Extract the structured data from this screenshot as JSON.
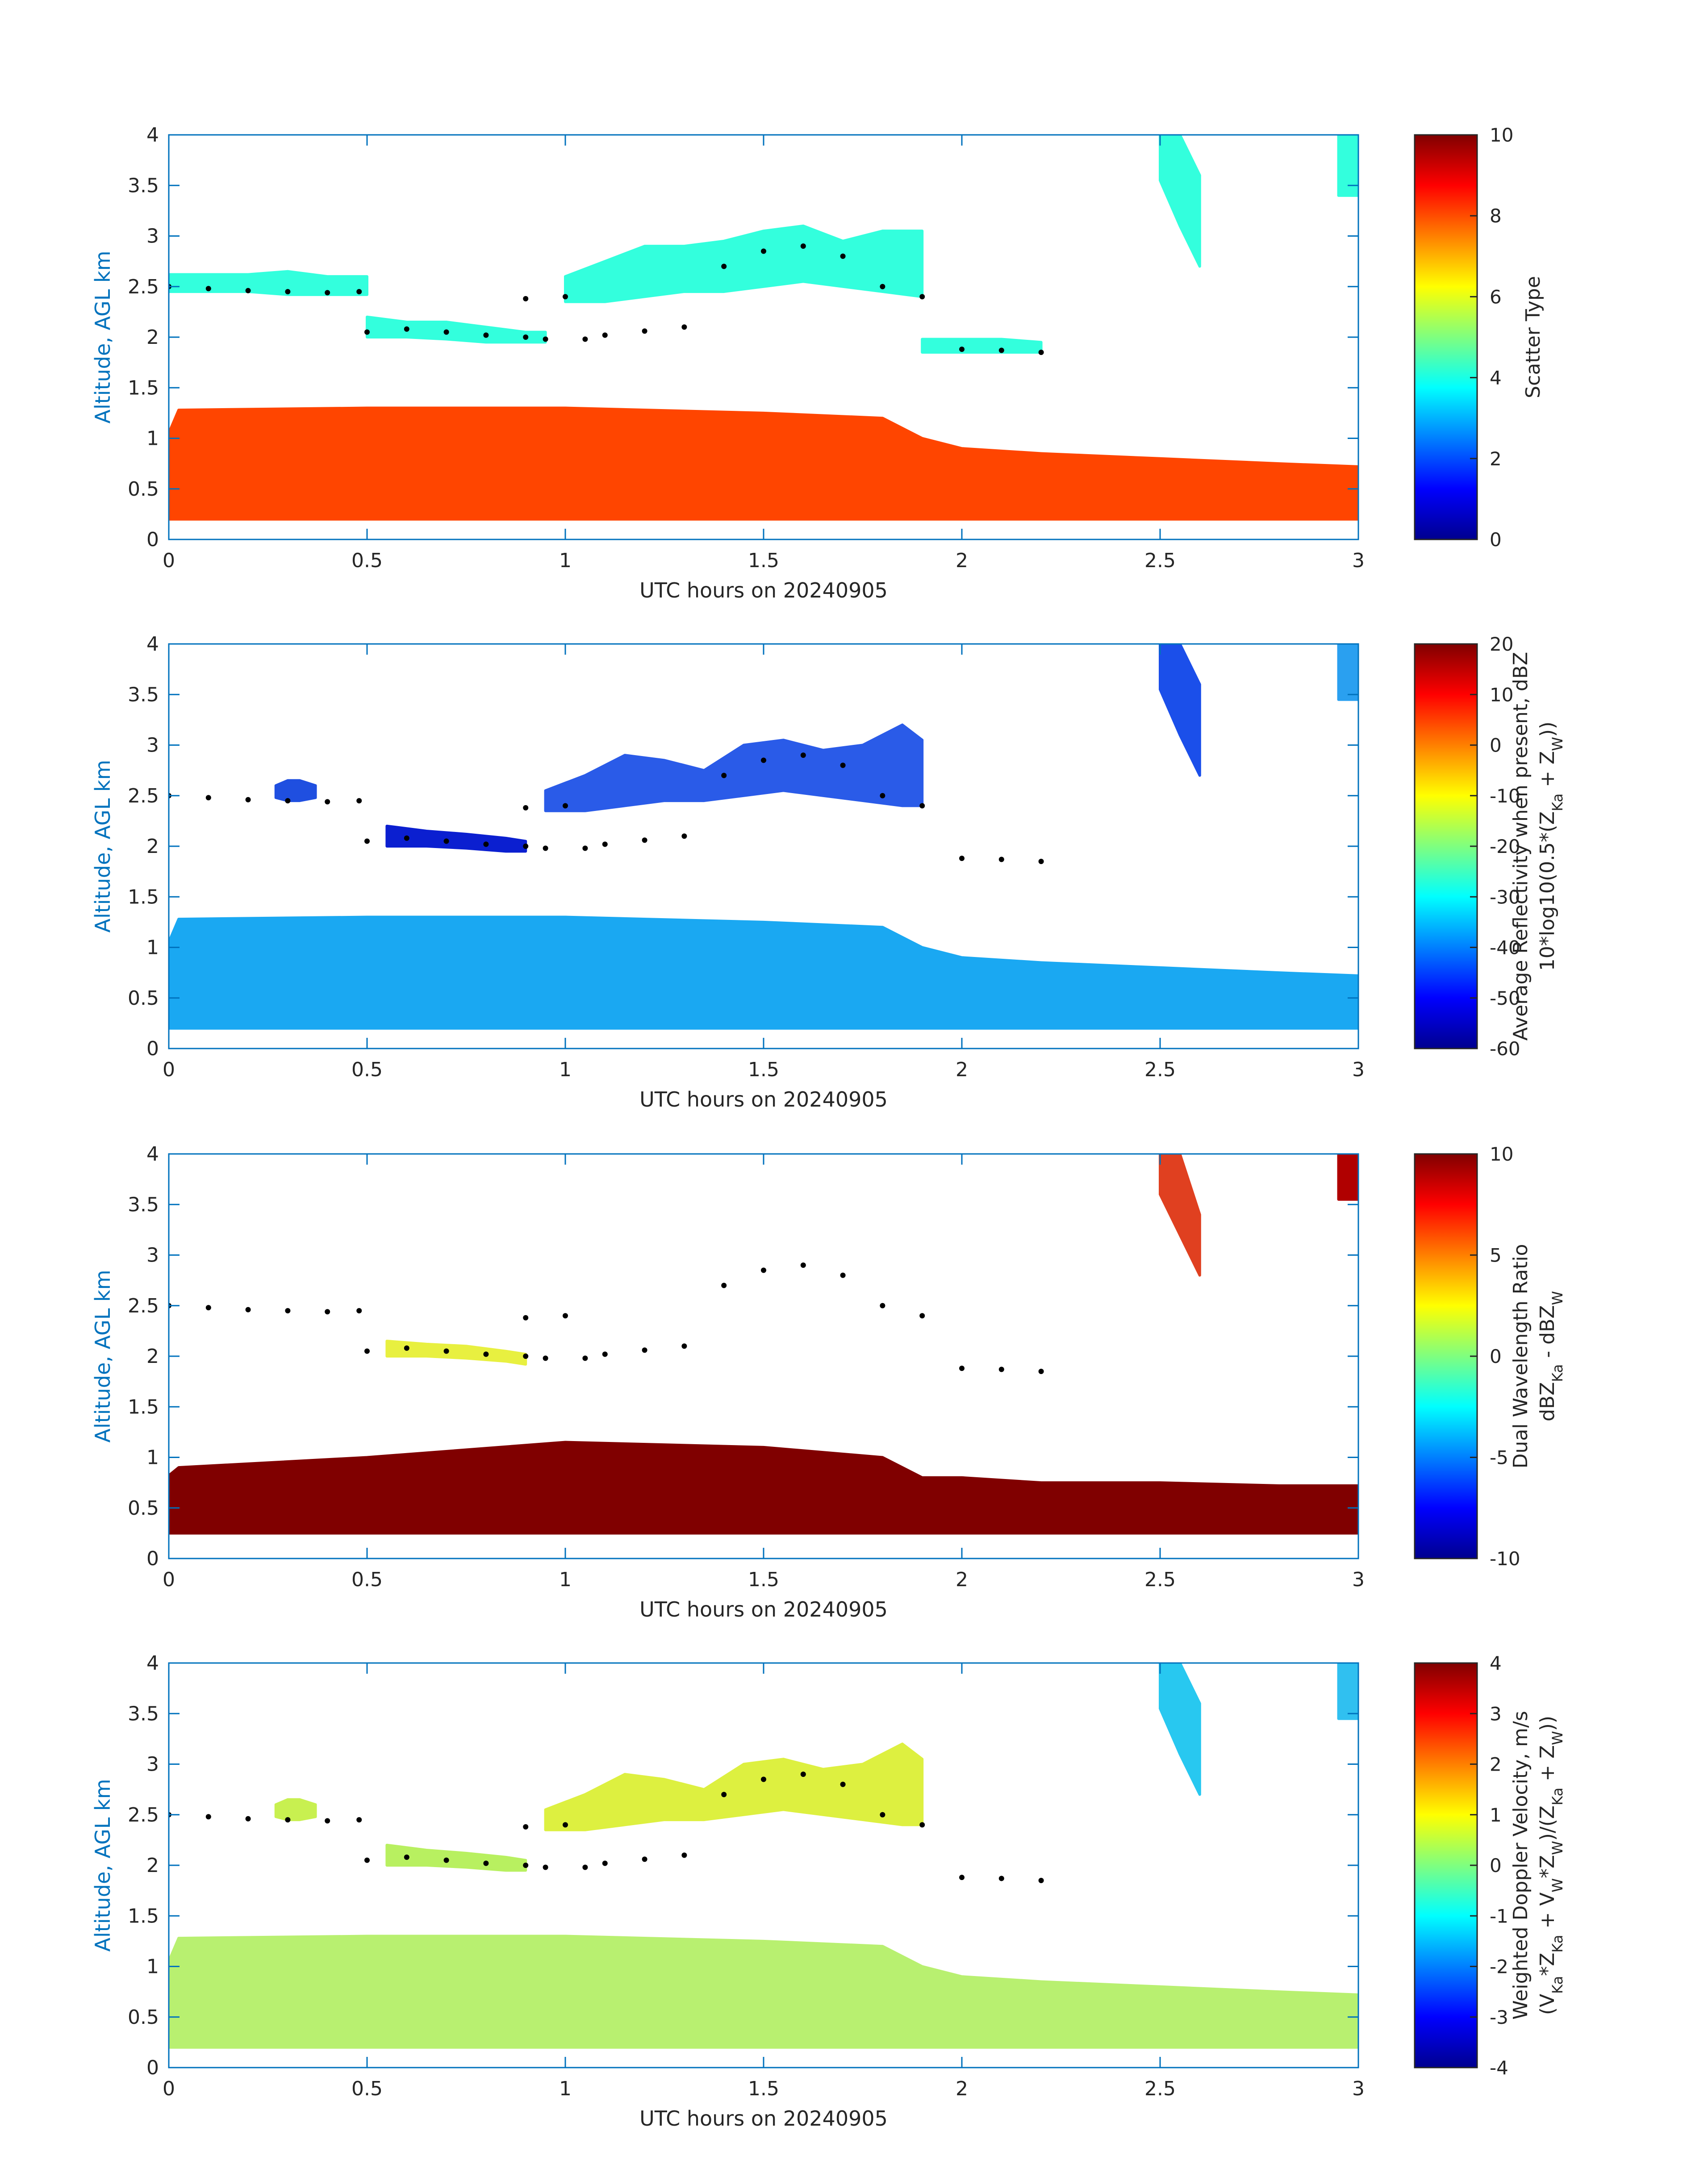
{
  "figure": {
    "xlabel": "UTC hours on 20240905",
    "ylabel": "Altitude, AGL km",
    "axis_color": "#0072BD",
    "text_color": "#262626"
  },
  "chart_data": [
    {
      "type": "heatmap",
      "panel": "Scatter Type",
      "xlabel": "UTC hours on 20240905",
      "ylabel": "Altitude, AGL km",
      "xlim": [
        0,
        3
      ],
      "ylim": [
        0,
        4
      ],
      "xticks": [
        "0",
        "0.5",
        "1",
        "1.5",
        "2",
        "2.5",
        "3"
      ],
      "yticks": [
        "0",
        "0.5",
        "1",
        "1.5",
        "2",
        "2.5",
        "3",
        "3.5",
        "4"
      ],
      "colorbar": {
        "label": [
          "Scatter Type"
        ],
        "range": [
          0,
          10
        ],
        "ticks": [
          "0",
          "2",
          "4",
          "6",
          "8",
          "10"
        ],
        "colormap": "jet"
      },
      "layers": [
        {
          "name": "cloud",
          "value": 8.5,
          "color": "#FF4500",
          "x": [
            0,
            0.025,
            0.5,
            1.0,
            1.5,
            1.8,
            1.9,
            2.0,
            2.2,
            2.5,
            2.8,
            3.0
          ],
          "bottom": [
            0.2,
            0.2,
            0.2,
            0.2,
            0.2,
            0.2,
            0.2,
            0.2,
            0.2,
            0.2,
            0.2,
            0.2
          ],
          "top": [
            1.05,
            1.28,
            1.3,
            1.3,
            1.25,
            1.2,
            1.0,
            0.9,
            0.85,
            0.8,
            0.75,
            0.72
          ]
        },
        {
          "name": "ice layer 2.5 km",
          "value": 4.2,
          "color": "#33FFDD",
          "x": [
            0,
            0.1,
            0.2,
            0.3,
            0.4,
            0.5
          ],
          "bottom": [
            2.45,
            2.45,
            2.45,
            2.42,
            2.42,
            2.42
          ],
          "top": [
            2.62,
            2.62,
            2.62,
            2.65,
            2.6,
            2.6
          ]
        },
        {
          "name": "ice layer 2.1 km",
          "value": 4.2,
          "color": "#33FFDD",
          "x": [
            0.5,
            0.6,
            0.7,
            0.8,
            0.9,
            0.95
          ],
          "bottom": [
            2.0,
            2.0,
            1.98,
            1.95,
            1.95,
            1.95
          ],
          "top": [
            2.2,
            2.15,
            2.15,
            2.1,
            2.05,
            2.05
          ]
        },
        {
          "name": "ice plume 1.0-1.9 h",
          "value": 4.2,
          "color": "#33FFDD",
          "x": [
            1.0,
            1.1,
            1.2,
            1.3,
            1.4,
            1.5,
            1.6,
            1.7,
            1.8,
            1.9
          ],
          "bottom": [
            2.35,
            2.35,
            2.4,
            2.45,
            2.45,
            2.5,
            2.55,
            2.5,
            2.45,
            2.4
          ],
          "top": [
            2.6,
            2.75,
            2.9,
            2.9,
            2.95,
            3.05,
            3.1,
            2.95,
            3.05,
            3.05
          ]
        },
        {
          "name": "ice layer 1.9 km",
          "value": 4.2,
          "color": "#33FFDD",
          "x": [
            1.9,
            2.0,
            2.1,
            2.2
          ],
          "bottom": [
            1.85,
            1.85,
            1.85,
            1.85
          ],
          "top": [
            1.98,
            1.98,
            1.98,
            1.95
          ]
        },
        {
          "name": "fall streak 2.5-2.6 h",
          "value": 4.2,
          "color": "#33FFDD",
          "x": [
            2.5,
            2.55,
            2.6
          ],
          "bottom": [
            3.55,
            3.1,
            2.7
          ],
          "top": [
            4.0,
            4.0,
            3.6
          ]
        },
        {
          "name": "top-right echo",
          "value": 4.2,
          "color": "#33FFDD",
          "x": [
            2.95,
            3.0
          ],
          "bottom": [
            3.4,
            3.4
          ],
          "top": [
            4.0,
            4.0
          ]
        }
      ],
      "cloud_top_markers": {
        "x": [
          0.0,
          0.1,
          0.2,
          0.3,
          0.4,
          0.48,
          0.5,
          0.6,
          0.7,
          0.8,
          0.9,
          0.95,
          0.9,
          1.0,
          1.05,
          1.1,
          1.2,
          1.3,
          1.4,
          1.5,
          1.6,
          1.7,
          1.8,
          1.9,
          2.0,
          2.1,
          2.2
        ],
        "y": [
          2.5,
          2.48,
          2.46,
          2.45,
          2.44,
          2.45,
          2.05,
          2.08,
          2.05,
          2.02,
          2.0,
          1.98,
          2.38,
          2.4,
          1.98,
          2.02,
          2.06,
          2.1,
          2.7,
          2.85,
          2.9,
          2.8,
          2.5,
          2.4,
          1.88,
          1.87,
          1.85
        ]
      }
    },
    {
      "type": "heatmap",
      "panel": "Average Reflectivity",
      "xlabel": "UTC hours on 20240905",
      "ylabel": "Altitude, AGL km",
      "xlim": [
        0,
        3
      ],
      "ylim": [
        0,
        4
      ],
      "xticks": [
        "0",
        "0.5",
        "1",
        "1.5",
        "2",
        "2.5",
        "3"
      ],
      "yticks": [
        "0",
        "0.5",
        "1",
        "1.5",
        "2",
        "2.5",
        "3",
        "3.5",
        "4"
      ],
      "colorbar": {
        "label": [
          "Average Reflectivity when present, dBZ",
          "10*log10(0.5*(Z",
          "Ka",
          " + Z",
          "W",
          "))"
        ],
        "range": [
          -60,
          20
        ],
        "ticks": [
          "-60",
          "-50",
          "-40",
          "-30",
          "-20",
          "-10",
          "0",
          "10",
          "20"
        ],
        "colormap": "jet"
      },
      "layers": [
        {
          "name": "cloud",
          "value": -38,
          "color": "#1AA8F2",
          "x": [
            0,
            0.025,
            0.5,
            1.0,
            1.5,
            1.8,
            1.9,
            2.0,
            2.2,
            2.5,
            2.8,
            3.0
          ],
          "bottom": [
            0.2,
            0.2,
            0.2,
            0.2,
            0.2,
            0.2,
            0.2,
            0.2,
            0.2,
            0.2,
            0.2,
            0.2
          ],
          "top": [
            1.05,
            1.28,
            1.3,
            1.3,
            1.25,
            1.2,
            1.0,
            0.9,
            0.85,
            0.8,
            0.75,
            0.72
          ]
        },
        {
          "name": "ice layer 2.5 km",
          "value": -52,
          "color": "#1F4FE0",
          "x": [
            0.27,
            0.3,
            0.33,
            0.37
          ],
          "bottom": [
            2.48,
            2.45,
            2.45,
            2.48
          ],
          "top": [
            2.6,
            2.65,
            2.65,
            2.6
          ]
        },
        {
          "name": "ice layer 2.1 km",
          "value": -54,
          "color": "#0B1FD0",
          "x": [
            0.55,
            0.65,
            0.75,
            0.85,
            0.9
          ],
          "bottom": [
            2.0,
            2.0,
            1.98,
            1.95,
            1.95
          ],
          "top": [
            2.2,
            2.15,
            2.12,
            2.08,
            2.05
          ]
        },
        {
          "name": "ice plume 1.0-1.9 h",
          "value": -50,
          "color": "#2A5BE8",
          "x": [
            0.95,
            1.05,
            1.15,
            1.25,
            1.35,
            1.45,
            1.55,
            1.65,
            1.75,
            1.85,
            1.9
          ],
          "bottom": [
            2.35,
            2.35,
            2.4,
            2.45,
            2.45,
            2.5,
            2.55,
            2.5,
            2.45,
            2.4,
            2.4
          ],
          "top": [
            2.55,
            2.7,
            2.9,
            2.85,
            2.75,
            3.0,
            3.05,
            2.95,
            3.0,
            3.2,
            3.05
          ]
        },
        {
          "name": "fall streak 2.5-2.6 h",
          "value": -48,
          "color": "#1B4FEA",
          "x": [
            2.5,
            2.55,
            2.6
          ],
          "bottom": [
            3.55,
            3.1,
            2.7
          ],
          "top": [
            4.0,
            4.0,
            3.6
          ]
        },
        {
          "name": "top-right echo",
          "value": -45,
          "color": "#2AA0F0",
          "x": [
            2.95,
            3.0
          ],
          "bottom": [
            3.45,
            3.45
          ],
          "top": [
            4.0,
            4.0
          ]
        }
      ],
      "cloud_top_markers": {
        "x": [
          0.0,
          0.1,
          0.2,
          0.3,
          0.4,
          0.48,
          0.5,
          0.6,
          0.7,
          0.8,
          0.9,
          0.95,
          0.9,
          1.0,
          1.05,
          1.1,
          1.2,
          1.3,
          1.4,
          1.5,
          1.6,
          1.7,
          1.8,
          1.9,
          2.0,
          2.1,
          2.2
        ],
        "y": [
          2.5,
          2.48,
          2.46,
          2.45,
          2.44,
          2.45,
          2.05,
          2.08,
          2.05,
          2.02,
          2.0,
          1.98,
          2.38,
          2.4,
          1.98,
          2.02,
          2.06,
          2.1,
          2.7,
          2.85,
          2.9,
          2.8,
          2.5,
          2.4,
          1.88,
          1.87,
          1.85
        ]
      }
    },
    {
      "type": "heatmap",
      "panel": "Dual Wavelength Ratio",
      "xlabel": "UTC hours on 20240905",
      "ylabel": "Altitude, AGL km",
      "xlim": [
        0,
        3
      ],
      "ylim": [
        0,
        4
      ],
      "xticks": [
        "0",
        "0.5",
        "1",
        "1.5",
        "2",
        "2.5",
        "3"
      ],
      "yticks": [
        "0",
        "0.5",
        "1",
        "1.5",
        "2",
        "2.5",
        "3",
        "3.5",
        "4"
      ],
      "colorbar": {
        "label": [
          "Dual Wavelength Ratio",
          "dBZ",
          "Ka",
          " - dBZ",
          "W"
        ],
        "range": [
          -10,
          10
        ],
        "ticks": [
          "-10",
          "-5",
          "0",
          "5",
          "10"
        ],
        "colormap": "jet"
      },
      "layers": [
        {
          "name": "cloud",
          "value": 10,
          "color": "#800000",
          "x": [
            0,
            0.025,
            0.5,
            1.0,
            1.5,
            1.8,
            1.9,
            2.0,
            2.2,
            2.5,
            2.8,
            3.0
          ],
          "bottom": [
            0.25,
            0.25,
            0.25,
            0.25,
            0.25,
            0.25,
            0.25,
            0.25,
            0.25,
            0.25,
            0.25,
            0.25
          ],
          "top": [
            0.82,
            0.9,
            1.0,
            1.15,
            1.1,
            1.0,
            0.8,
            0.8,
            0.75,
            0.75,
            0.72,
            0.72
          ]
        },
        {
          "name": "echo 2.05 km",
          "value": 1,
          "color": "#E8F040",
          "x": [
            0.55,
            0.65,
            0.75,
            0.85,
            0.9
          ],
          "bottom": [
            2.0,
            2.0,
            1.98,
            1.95,
            1.92
          ],
          "top": [
            2.15,
            2.12,
            2.1,
            2.05,
            2.02
          ]
        },
        {
          "name": "fall streak 2.55-2.6 h",
          "value": 7,
          "color": "#E04020",
          "x": [
            2.5,
            2.55,
            2.6
          ],
          "bottom": [
            3.6,
            3.2,
            2.8
          ],
          "top": [
            4.0,
            4.0,
            3.4
          ]
        },
        {
          "name": "top-right echo",
          "value": 9,
          "color": "#B00000",
          "x": [
            2.95,
            3.0
          ],
          "bottom": [
            3.55,
            3.55
          ],
          "top": [
            4.0,
            4.0
          ]
        }
      ],
      "cloud_top_markers": {
        "x": [
          0.0,
          0.1,
          0.2,
          0.3,
          0.4,
          0.48,
          0.5,
          0.6,
          0.7,
          0.8,
          0.9,
          0.95,
          0.9,
          1.0,
          1.05,
          1.1,
          1.2,
          1.3,
          1.4,
          1.5,
          1.6,
          1.7,
          1.8,
          1.9,
          2.0,
          2.1,
          2.2
        ],
        "y": [
          2.5,
          2.48,
          2.46,
          2.45,
          2.44,
          2.45,
          2.05,
          2.08,
          2.05,
          2.02,
          2.0,
          1.98,
          2.38,
          2.4,
          1.98,
          2.02,
          2.06,
          2.1,
          2.7,
          2.85,
          2.9,
          2.8,
          2.5,
          2.4,
          1.88,
          1.87,
          1.85
        ]
      }
    },
    {
      "type": "heatmap",
      "panel": "Weighted Doppler Velocity",
      "xlabel": "UTC hours on 20240905",
      "ylabel": "Altitude, AGL km",
      "xlim": [
        0,
        3
      ],
      "ylim": [
        0,
        4
      ],
      "xticks": [
        "0",
        "0.5",
        "1",
        "1.5",
        "2",
        "2.5",
        "3"
      ],
      "yticks": [
        "0",
        "0.5",
        "1",
        "1.5",
        "2",
        "2.5",
        "3",
        "3.5",
        "4"
      ],
      "colorbar": {
        "label": [
          "Weighted Doppler Velocity, m/s",
          "(V",
          "Ka",
          "*Z",
          "Ka",
          " + V",
          "W",
          "*Z",
          "W",
          ")/(Z",
          "Ka",
          " + Z",
          "W",
          "))"
        ],
        "range": [
          -4,
          4
        ],
        "ticks": [
          "-4",
          "-3",
          "-2",
          "-1",
          "0",
          "1",
          "2",
          "3",
          "4"
        ],
        "colormap": "jet"
      },
      "layers": [
        {
          "name": "cloud",
          "value": 0.3,
          "color": "#B8F070",
          "x": [
            0,
            0.025,
            0.5,
            1.0,
            1.5,
            1.8,
            1.9,
            2.0,
            2.2,
            2.5,
            2.8,
            3.0
          ],
          "bottom": [
            0.2,
            0.2,
            0.2,
            0.2,
            0.2,
            0.2,
            0.2,
            0.2,
            0.2,
            0.2,
            0.2,
            0.2
          ],
          "top": [
            1.05,
            1.28,
            1.3,
            1.3,
            1.25,
            1.2,
            1.0,
            0.9,
            0.85,
            0.8,
            0.75,
            0.72
          ]
        },
        {
          "name": "ice layer 2.5 km",
          "value": 0.5,
          "color": "#C8F050",
          "x": [
            0.27,
            0.3,
            0.33,
            0.37
          ],
          "bottom": [
            2.48,
            2.45,
            2.45,
            2.48
          ],
          "top": [
            2.6,
            2.65,
            2.65,
            2.6
          ]
        },
        {
          "name": "ice layer 2.1 km",
          "value": 0.4,
          "color": "#B8F060",
          "x": [
            0.55,
            0.65,
            0.75,
            0.85,
            0.9
          ],
          "bottom": [
            2.0,
            2.0,
            1.98,
            1.95,
            1.95
          ],
          "top": [
            2.2,
            2.15,
            2.12,
            2.08,
            2.05
          ]
        },
        {
          "name": "ice plume 1.0-1.9 h",
          "value": 0.8,
          "color": "#DDF040",
          "x": [
            0.95,
            1.05,
            1.15,
            1.25,
            1.35,
            1.45,
            1.55,
            1.65,
            1.75,
            1.85,
            1.9
          ],
          "bottom": [
            2.35,
            2.35,
            2.4,
            2.45,
            2.45,
            2.5,
            2.55,
            2.5,
            2.45,
            2.4,
            2.4
          ],
          "top": [
            2.55,
            2.7,
            2.9,
            2.85,
            2.75,
            3.0,
            3.05,
            2.95,
            3.0,
            3.2,
            3.05
          ]
        },
        {
          "name": "fall streak 2.5-2.6 h",
          "value": -1.2,
          "color": "#28C8F0",
          "x": [
            2.5,
            2.55,
            2.6
          ],
          "bottom": [
            3.55,
            3.1,
            2.7
          ],
          "top": [
            4.0,
            4.0,
            3.6
          ]
        },
        {
          "name": "top-right echo",
          "value": -1,
          "color": "#30C0F0",
          "x": [
            2.95,
            3.0
          ],
          "bottom": [
            3.45,
            3.45
          ],
          "top": [
            4.0,
            4.0
          ]
        }
      ],
      "cloud_top_markers": {
        "x": [
          0.0,
          0.1,
          0.2,
          0.3,
          0.4,
          0.48,
          0.5,
          0.6,
          0.7,
          0.8,
          0.9,
          0.95,
          0.9,
          1.0,
          1.05,
          1.1,
          1.2,
          1.3,
          1.4,
          1.5,
          1.6,
          1.7,
          1.8,
          1.9,
          2.0,
          2.1,
          2.2
        ],
        "y": [
          2.5,
          2.48,
          2.46,
          2.45,
          2.44,
          2.45,
          2.05,
          2.08,
          2.05,
          2.02,
          2.0,
          1.98,
          2.38,
          2.4,
          1.98,
          2.02,
          2.06,
          2.1,
          2.7,
          2.85,
          2.9,
          2.8,
          2.5,
          2.4,
          1.88,
          1.87,
          1.85
        ]
      }
    }
  ]
}
